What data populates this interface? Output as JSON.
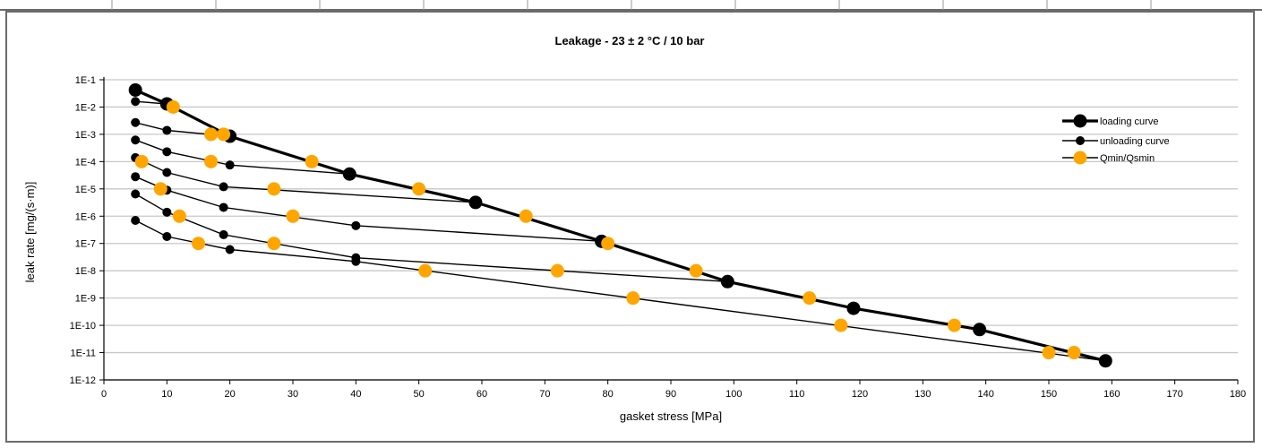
{
  "chart_data": {
    "type": "line",
    "title": "Leakage - 23 ± 2 °C / 10 bar",
    "xlabel": "gasket stress [MPa]",
    "ylabel": "leak rate [mg/(s·m)]",
    "xlim": [
      0,
      180
    ],
    "ylim": [
      1e-12,
      0.1
    ],
    "y_scale": "log",
    "x_ticks": [
      0,
      10,
      20,
      30,
      40,
      50,
      60,
      70,
      80,
      90,
      100,
      110,
      120,
      130,
      140,
      150,
      160,
      170,
      180
    ],
    "y_ticks": [
      1e-12,
      1e-11,
      1e-10,
      1e-09,
      1e-08,
      1e-07,
      1e-06,
      1e-05,
      0.0001,
      0.001,
      0.01,
      0.1
    ],
    "y_tick_labels": [
      "1E-12",
      "1E-11",
      "1E-10",
      "1E-9",
      "1E-8",
      "1E-7",
      "1E-6",
      "1E-5",
      "1E-4",
      "1E-3",
      "1E-2",
      "1E-1"
    ],
    "grid": true,
    "legend_position": "top-right",
    "colors": {
      "loading": "#000000",
      "unloading": "#000000",
      "qmin": "#FFA500",
      "grid": "#c8c8c8"
    },
    "series": [
      {
        "name": "loading curve",
        "style": "loading",
        "points": [
          [
            5,
            0.042
          ],
          [
            10,
            0.013
          ],
          [
            20,
            0.00085
          ],
          [
            39,
            3.5e-05
          ],
          [
            59,
            3.2e-06
          ],
          [
            79,
            1.2e-07
          ],
          [
            99,
            4e-09
          ],
          [
            119,
            4.2e-10
          ],
          [
            139,
            7e-11
          ],
          [
            159,
            5e-12
          ]
        ]
      },
      {
        "name": "unloading curve",
        "style": "unloading",
        "segments": [
          [
            [
              5,
              0.016
            ],
            [
              10,
              0.013
            ]
          ],
          [
            [
              5,
              0.0027
            ],
            [
              10,
              0.0014
            ],
            [
              20,
              0.00085
            ]
          ],
          [
            [
              5,
              0.00062
            ],
            [
              10,
              0.00023
            ],
            [
              20,
              7.5e-05
            ],
            [
              39,
              3.5e-05
            ]
          ],
          [
            [
              5,
              0.00014
            ],
            [
              10,
              4e-05
            ],
            [
              19,
              1.2e-05
            ],
            [
              59,
              3.2e-06
            ]
          ],
          [
            [
              5,
              2.8e-05
            ],
            [
              10,
              9e-06
            ],
            [
              19,
              2.1e-06
            ],
            [
              40,
              4.5e-07
            ],
            [
              79,
              1.2e-07
            ]
          ],
          [
            [
              5,
              6.5e-06
            ],
            [
              10,
              1.4e-06
            ],
            [
              19,
              2.1e-07
            ],
            [
              40,
              3e-08
            ],
            [
              99,
              4e-09
            ]
          ],
          [
            [
              5,
              7e-07
            ],
            [
              10,
              1.8e-07
            ],
            [
              20,
              6e-08
            ],
            [
              40,
              2.2e-08
            ],
            [
              159,
              5e-12
            ]
          ]
        ]
      },
      {
        "name": "Qmin/Qsmin",
        "style": "qmin",
        "points": [
          [
            11,
            0.01
          ],
          [
            17,
            0.001
          ],
          [
            19,
            0.001
          ],
          [
            6,
            0.0001
          ],
          [
            17,
            0.0001
          ],
          [
            33,
            0.0001
          ],
          [
            9,
            1e-05
          ],
          [
            27,
            1e-05
          ],
          [
            50,
            1e-05
          ],
          [
            12,
            1e-06
          ],
          [
            30,
            1e-06
          ],
          [
            67,
            1e-06
          ],
          [
            15,
            1e-07
          ],
          [
            27,
            1e-07
          ],
          [
            80,
            1e-07
          ],
          [
            51,
            1e-08
          ],
          [
            72,
            1e-08
          ],
          [
            94,
            1e-08
          ],
          [
            84,
            1e-09
          ],
          [
            112,
            1e-09
          ],
          [
            117,
            1e-10
          ],
          [
            135,
            1e-10
          ],
          [
            150,
            1e-11
          ],
          [
            154,
            1e-11
          ]
        ]
      }
    ]
  }
}
